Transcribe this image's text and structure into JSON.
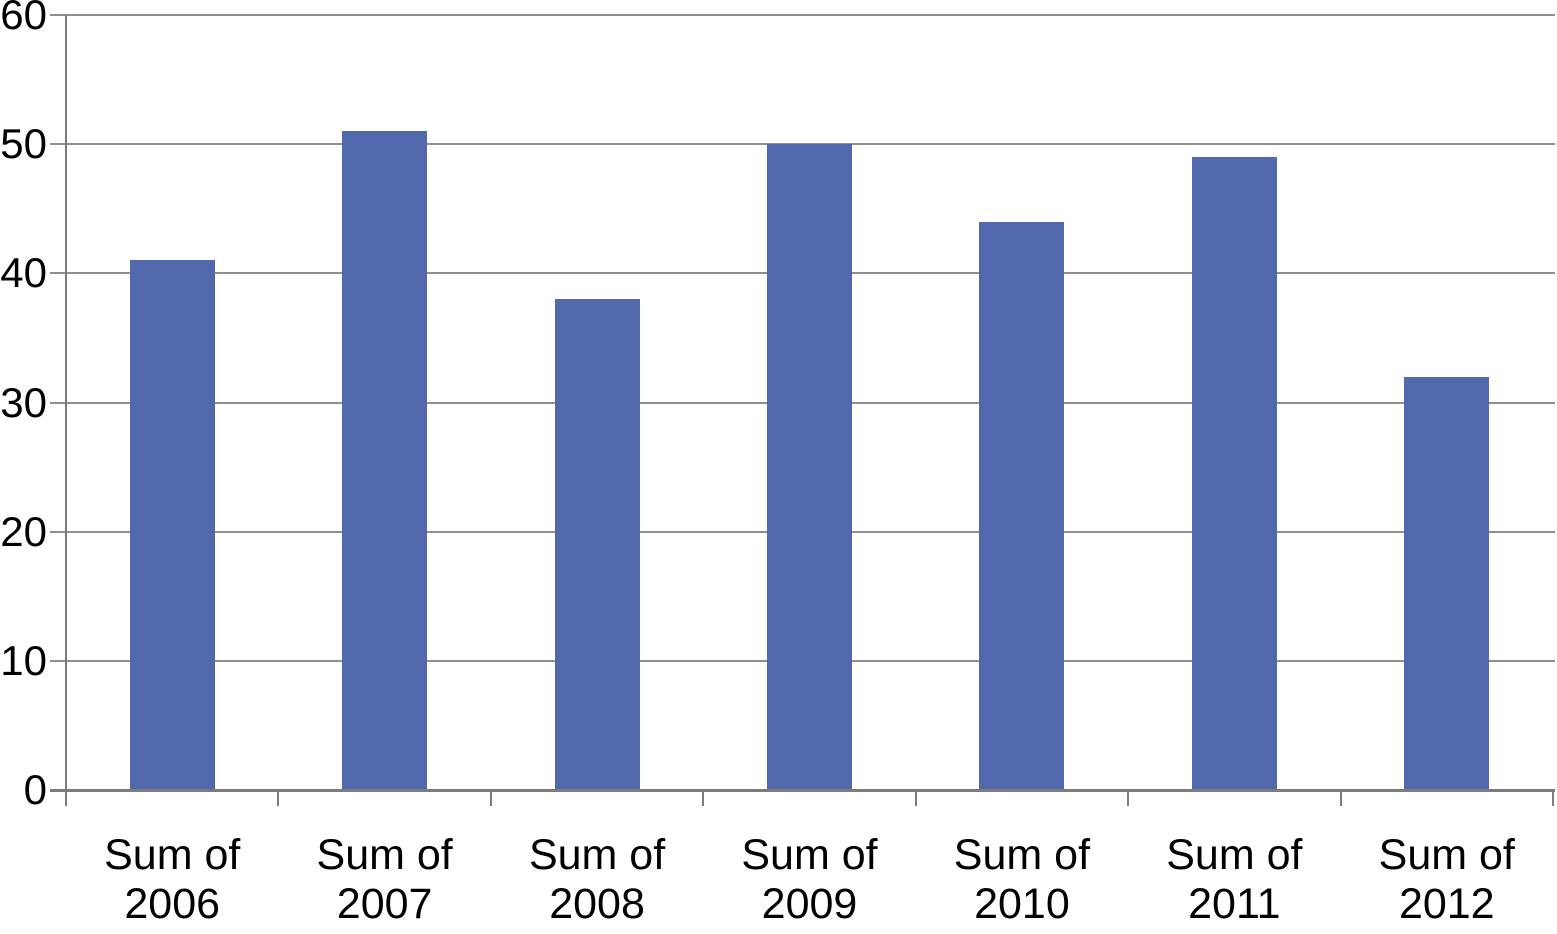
{
  "chart_data": {
    "type": "bar",
    "title": "",
    "xlabel": "",
    "ylabel": "",
    "categories": [
      [
        "Sum of",
        "2006"
      ],
      [
        "Sum of",
        "2007"
      ],
      [
        "Sum of",
        "2008"
      ],
      [
        "Sum of",
        "2009"
      ],
      [
        "Sum of",
        "2010"
      ],
      [
        "Sum of",
        "2011"
      ],
      [
        "Sum of",
        "2012"
      ]
    ],
    "values": [
      41,
      51,
      38,
      50,
      44,
      49,
      32
    ],
    "ylim": [
      0,
      60
    ],
    "yticks": [
      0,
      10,
      20,
      30,
      40,
      50,
      60
    ],
    "grid": true,
    "legend": "none",
    "colors": {
      "bar": "#5268AC",
      "gridline": "#8F8F8F",
      "axis": "#7C7C7C",
      "text": "#000000",
      "background": "#FFFFFF"
    }
  }
}
